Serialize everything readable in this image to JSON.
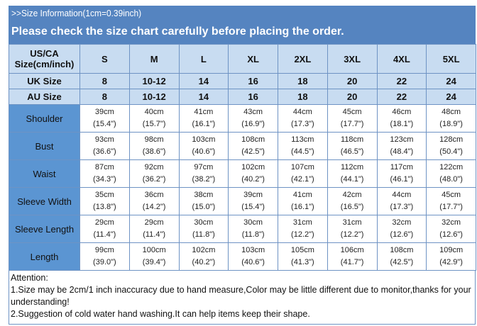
{
  "banner": {
    "line1": ">>Size Information(1cm=0.39inch)",
    "line2": "Please check the size chart carefully before placing the order."
  },
  "colors": {
    "banner": "#5584c0",
    "header_rows": "#c8dcf1",
    "label_cells": "#5b95d2"
  },
  "table": {
    "corner": [
      "US/CA",
      "Size(cm/inch)"
    ],
    "sizes": [
      "S",
      "M",
      "L",
      "XL",
      "2XL",
      "3XL",
      "4XL",
      "5XL"
    ],
    "uk": {
      "label": "UK Size",
      "values": [
        "8",
        "10-12",
        "14",
        "16",
        "18",
        "20",
        "22",
        "24"
      ]
    },
    "au": {
      "label": "AU Size",
      "values": [
        "8",
        "10-12",
        "14",
        "16",
        "18",
        "20",
        "22",
        "24"
      ]
    },
    "rows": [
      {
        "label": "Shoulder",
        "cm": [
          "39cm",
          "40cm",
          "41cm",
          "43cm",
          "44cm",
          "45cm",
          "46cm",
          "48cm"
        ],
        "in": [
          "(15.4\")",
          "(15.7\")",
          "(16.1\")",
          "(16.9\")",
          "(17.3\")",
          "(17.7\")",
          "(18.1\")",
          "(18.9\")"
        ]
      },
      {
        "label": "Bust",
        "cm": [
          "93cm",
          "98cm",
          "103cm",
          "108cm",
          "113cm",
          "118cm",
          "123cm",
          "128cm"
        ],
        "in": [
          "(36.6\")",
          "(38.6\")",
          "(40.6\")",
          "(42.5\")",
          "(44.5\")",
          "(46.5\")",
          "(48.4\")",
          "(50.4\")"
        ]
      },
      {
        "label": "Waist",
        "cm": [
          "87cm",
          "92cm",
          "97cm",
          "102cm",
          "107cm",
          "112cm",
          "117cm",
          "122cm"
        ],
        "in": [
          "(34.3\")",
          "(36.2\")",
          "(38.2\")",
          "(40.2\")",
          "(42.1\")",
          "(44.1\")",
          "(46.1\")",
          "(48.0\")"
        ]
      },
      {
        "label": "Sleeve Width",
        "cm": [
          "35cm",
          "36cm",
          "38cm",
          "39cm",
          "41cm",
          "42cm",
          "44cm",
          "45cm"
        ],
        "in": [
          "(13.8\")",
          "(14.2\")",
          "(15.0\")",
          "(15.4\")",
          "(16.1\")",
          "(16.5\")",
          "(17.3\")",
          "(17.7\")"
        ]
      },
      {
        "label": "Sleeve Length",
        "cm": [
          "29cm",
          "29cm",
          "30cm",
          "30cm",
          "31cm",
          "31cm",
          "32cm",
          "32cm"
        ],
        "in": [
          "(11.4\")",
          "(11.4\")",
          "(11.8\")",
          "(11.8\")",
          "(12.2\")",
          "(12.2\")",
          "(12.6\")",
          "(12.6\")"
        ]
      },
      {
        "label": "Length",
        "cm": [
          "99cm",
          "100cm",
          "102cm",
          "103cm",
          "105cm",
          "106cm",
          "108cm",
          "109cm"
        ],
        "in": [
          "(39.0\")",
          "(39.4\")",
          "(40.2\")",
          "(40.6\")",
          "(41.3\")",
          "(41.7\")",
          "(42.5\")",
          "(42.9\")"
        ]
      }
    ]
  },
  "attention": {
    "title": "Attention:",
    "note1": "1.Size may be 2cm/1 inch inaccuracy due to hand measure,Color may be little different due to monitor,thanks for your understanding!",
    "note2": "2.Suggestion of cold water hand washing.It can help items keep their shape."
  }
}
